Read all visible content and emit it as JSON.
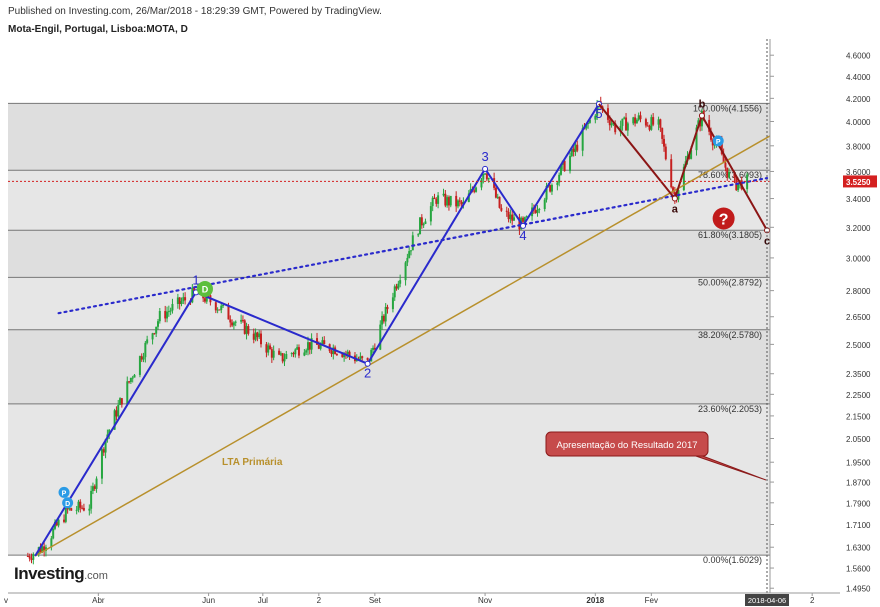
{
  "header": {
    "published": "Published on Investing.com, 26/Mar/2018 - 18:29:39 GMT, Powered by TradingView.",
    "symbol": "Mota-Engil, Portugal, Lisboa:MOTA, D"
  },
  "logo": {
    "main": "Investing",
    "suffix": ".com"
  },
  "chart_data": {
    "type": "line",
    "series": [
      {
        "name": "",
        "x": [
          "2017-02-21",
          "2017-03-01",
          "2017-03-15",
          "2017-03-27",
          "2017-04-05",
          "2017-04-20",
          "2017-05-05",
          "2017-05-25",
          "2017-06-05",
          "2017-06-15",
          "2017-06-25",
          "2017-07-10",
          "2017-07-25",
          "2017-08-10",
          "2017-08-28",
          "2017-09-08",
          "2017-09-25",
          "2017-10-05",
          "2017-10-20",
          "2017-11-01",
          "2017-11-10",
          "2017-11-22",
          "2017-12-05",
          "2017-12-20",
          "2018-01-03",
          "2018-01-12",
          "2018-01-25",
          "2018-02-05",
          "2018-02-14",
          "2018-02-22",
          "2018-03-01",
          "2018-03-12",
          "2018-03-18",
          "2018-03-26"
        ],
        "values": [
          1.6,
          1.63,
          1.76,
          1.78,
          2.05,
          2.35,
          2.65,
          2.79,
          2.72,
          2.63,
          2.56,
          2.42,
          2.5,
          2.48,
          2.4,
          2.7,
          3.2,
          3.4,
          3.35,
          3.62,
          3.3,
          3.21,
          3.45,
          3.75,
          4.15,
          3.95,
          4.02,
          3.96,
          3.4,
          3.75,
          4.05,
          3.7,
          3.5,
          3.525
        ]
      }
    ],
    "ylim": [
      1.48,
      4.7
    ],
    "yscale": "log",
    "y_ticks": [
      1.495,
      1.56,
      1.63,
      1.71,
      1.79,
      1.87,
      1.95,
      2.05,
      2.15,
      2.25,
      2.35,
      2.5,
      2.65,
      2.8,
      3.0,
      3.2,
      3.4,
      3.6,
      3.8,
      4.0,
      4.2,
      4.4,
      4.6
    ],
    "x_ticks": [
      {
        "label": "Abr",
        "date": "2017-04-01"
      },
      {
        "label": "Jun",
        "date": "2017-06-01"
      },
      {
        "label": "Jul",
        "date": "2017-07-01"
      },
      {
        "label": "2",
        "date": "2017-08-01"
      },
      {
        "label": "Set",
        "date": "2017-09-01"
      },
      {
        "label": "Nov",
        "date": "2017-11-01"
      },
      {
        "label": "2018",
        "date": "2018-01-01"
      },
      {
        "label": "Fev",
        "date": "2018-02-01"
      },
      {
        "label": "2",
        "date": "2018-05-01"
      }
    ],
    "x_left_edge_label": "v",
    "current_price": "3.5250",
    "current_price_color": "#d42020",
    "highlighted_date": "2018-04-06",
    "fib_levels": [
      {
        "value": 4.1556,
        "label": "100.00%(4.1556)"
      },
      {
        "value": 3.6093,
        "label": "78.60%(3.6093)"
      },
      {
        "value": 3.1805,
        "label": "61.80%(3.1805)"
      },
      {
        "value": 2.8792,
        "label": "50.00%(2.8792)"
      },
      {
        "value": 2.578,
        "label": "38.20%(2.5780)"
      },
      {
        "value": 2.2053,
        "label": "23.60%(2.2053)"
      },
      {
        "value": 1.6029,
        "label": "0.00%(1.6029)"
      }
    ],
    "impulse_wave": [
      {
        "date": "2017-02-25",
        "value": 1.6,
        "label": ""
      },
      {
        "date": "2017-05-25",
        "value": 2.79,
        "label": "1"
      },
      {
        "date": "2017-08-28",
        "value": 2.4,
        "label": "2"
      },
      {
        "date": "2017-11-01",
        "value": 3.62,
        "label": "3"
      },
      {
        "date": "2017-11-22",
        "value": 3.21,
        "label": "4"
      },
      {
        "date": "2018-01-03",
        "value": 4.15,
        "label": "5"
      }
    ],
    "corrective_wave": [
      {
        "date": "2018-01-03",
        "value": 4.15,
        "label": ""
      },
      {
        "date": "2018-02-14",
        "value": 3.4,
        "label": "a"
      },
      {
        "date": "2018-03-01",
        "value": 4.05,
        "label": "b"
      },
      {
        "date": "2018-04-06",
        "value": 3.18,
        "label": "c"
      }
    ],
    "impulse_color": "#2a2acc",
    "corrective_color": "#8b1515",
    "trendline_primary": {
      "label": "LTA Primária",
      "color": "#b8902c",
      "from": {
        "date": "2017-02-25",
        "value": 1.6
      },
      "to": {
        "date": "2018-04-10",
        "value": 3.9
      }
    },
    "trendline_dotted": {
      "color": "#2a2acc",
      "from": {
        "date": "2017-03-10",
        "value": 2.67
      },
      "to": {
        "date": "2018-04-06",
        "value": 3.55
      }
    },
    "event_markers": [
      {
        "type": "circle",
        "text": "D",
        "color": "#5cbf3b",
        "date": "2017-05-30",
        "value": 2.81
      },
      {
        "type": "circle",
        "text": "P",
        "color": "#2a9be6",
        "date": "2017-03-13",
        "value": 1.83
      },
      {
        "type": "circle",
        "text": "D",
        "color": "#2a9be6",
        "date": "2017-03-15",
        "value": 1.79
      },
      {
        "type": "circle",
        "text": "P",
        "color": "#2a9be6",
        "date": "2018-03-10",
        "value": 3.84
      },
      {
        "type": "circle",
        "text": "?",
        "color": "#c11b1b",
        "date": "2018-03-13",
        "value": 3.26
      }
    ],
    "callout": {
      "text": "Apresentação do Resultado 2017",
      "color": "#c64b4b"
    },
    "gridlines": false
  }
}
